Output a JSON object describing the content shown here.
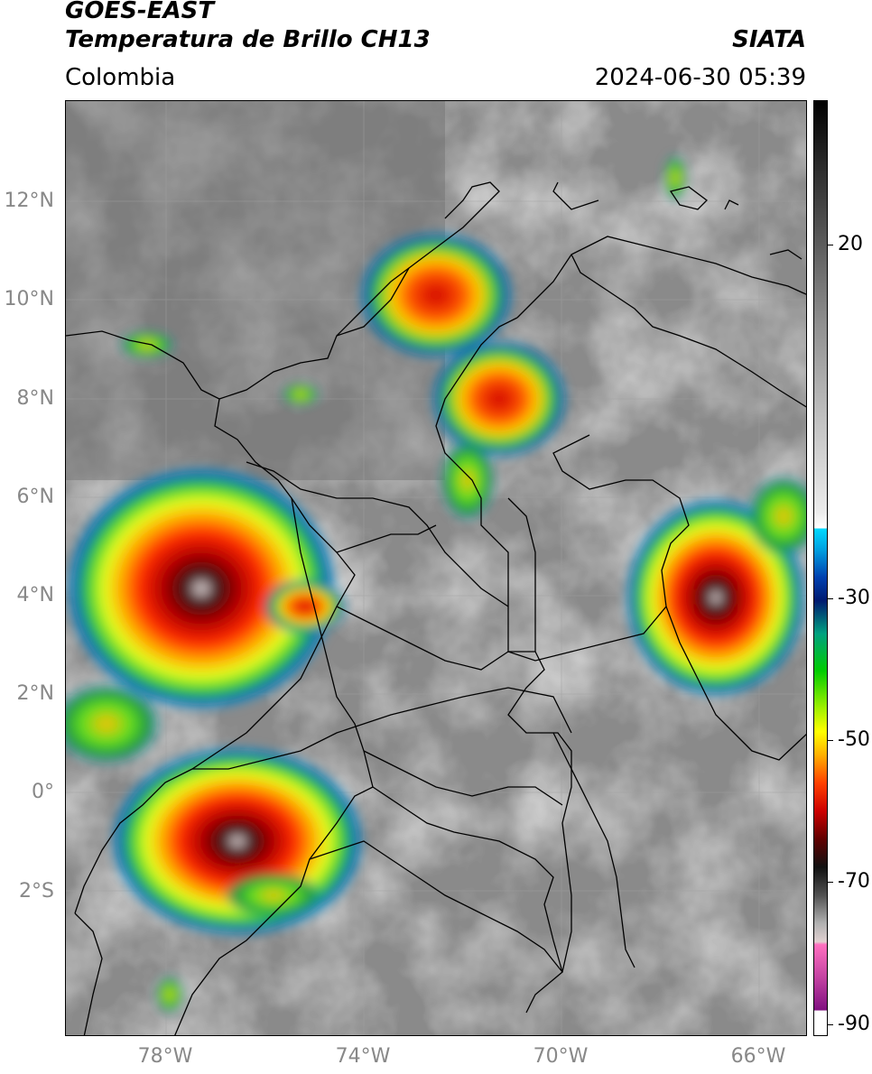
{
  "header": {
    "satellite": "GOES-EAST",
    "product": "Temperatura de Brillo CH13",
    "organization": "SIATA",
    "region": "Colombia",
    "timestamp": "2024-06-30 05:39"
  },
  "axes": {
    "lat_labels": [
      "12°N",
      "10°N",
      "8°N",
      "6°N",
      "4°N",
      "2°N",
      "0°",
      "2°S"
    ],
    "lon_labels": [
      "78°W",
      "74°W",
      "70°W",
      "66°W"
    ]
  },
  "colorbar": {
    "labels": [
      "20",
      "-30",
      "-50",
      "-70",
      "-90"
    ],
    "range": [
      -92,
      36
    ]
  },
  "colors": {
    "grey_background": "#8a8a8a",
    "border_lines": "#000000",
    "storm_core": "#b00000",
    "storm_ring": "#ffb000",
    "storm_edge": "#33cc33"
  }
}
